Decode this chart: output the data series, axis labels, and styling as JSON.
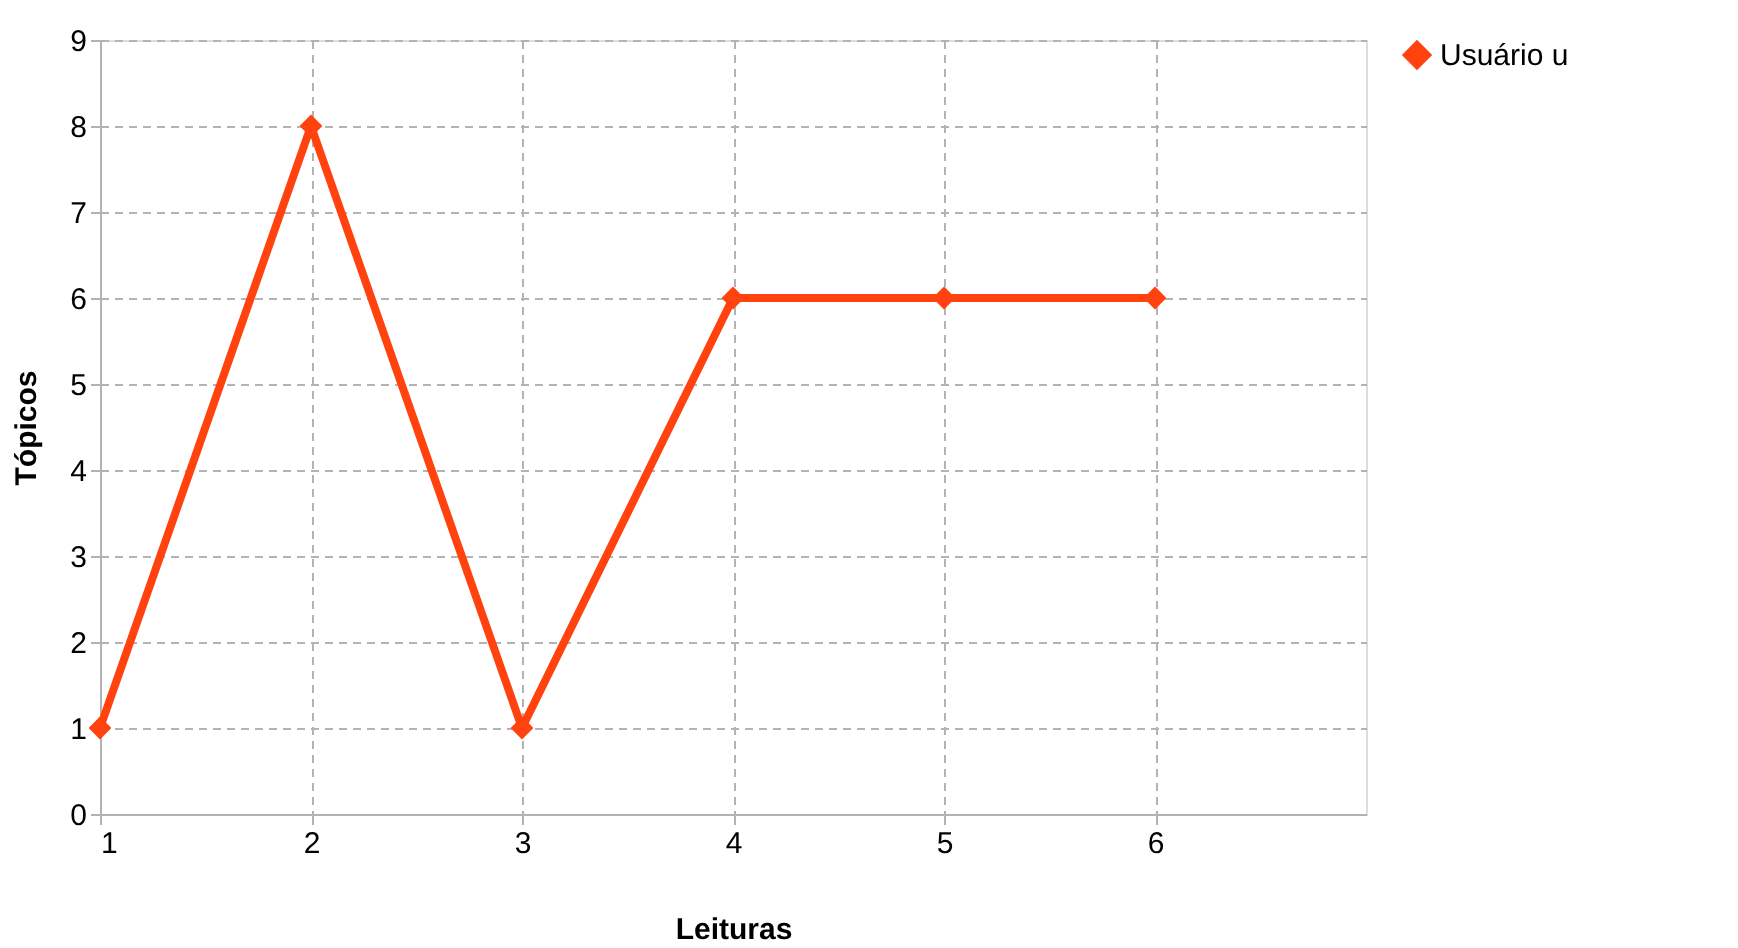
{
  "chart_data": {
    "type": "line",
    "xlabel": "Leituras",
    "ylabel": "Tópicos",
    "x": [
      1,
      2,
      3,
      4,
      5,
      6
    ],
    "series": [
      {
        "name": "Usuário u",
        "color": "#ff420e",
        "values": [
          1,
          8,
          1,
          6,
          6,
          6
        ]
      }
    ],
    "xlim": [
      1,
      7
    ],
    "xticks": [
      1,
      2,
      3,
      4,
      5,
      6
    ],
    "ylim": [
      0,
      9
    ],
    "yticks": [
      0,
      1,
      2,
      3,
      4,
      5,
      6,
      7,
      8,
      9
    ],
    "grid": true,
    "legend": "right",
    "marker": "diamond",
    "line_style": "solid"
  }
}
